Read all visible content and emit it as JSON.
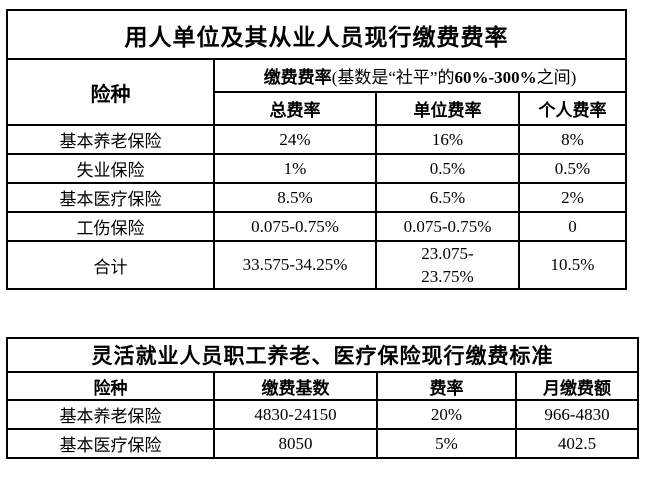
{
  "table1": {
    "title": "用人单位及其从业人员现行缴费费率",
    "insurance_type_header": "险种",
    "rate_header": {
      "bold_prefix": "缴费费率",
      "mid": "(基数是“社平”的",
      "bold_range": "60%-300%",
      "suffix": "之间)"
    },
    "sub_headers": {
      "total": "总费率",
      "employer": "单位费率",
      "personal": "个人费率"
    },
    "rows": [
      {
        "name": "基本养老保险",
        "total": "24%",
        "employer": "16%",
        "personal": "8%"
      },
      {
        "name": "失业保险",
        "total": "1%",
        "employer": "0.5%",
        "personal": "0.5%"
      },
      {
        "name": "基本医疗保险",
        "total": "8.5%",
        "employer": "6.5%",
        "personal": "2%"
      },
      {
        "name": "工伤保险",
        "total": "0.075-0.75%",
        "employer": "0.075-0.75%",
        "personal": "0"
      },
      {
        "name": "合计",
        "total": "33.575-34.25%",
        "employer": "23.075-23.75%",
        "personal": "10.5%"
      }
    ]
  },
  "table2": {
    "title": "灵活就业人员职工养老、医疗保险现行缴费标准",
    "headers": {
      "type": "险种",
      "base": "缴费基数",
      "rate": "费率",
      "monthly": "月缴费额"
    },
    "rows": [
      {
        "name": "基本养老保险",
        "base": "4830-24150",
        "rate": "20%",
        "monthly": "966-4830"
      },
      {
        "name": "基本医疗保险",
        "base": "8050",
        "rate": "5%",
        "monthly": "402.5"
      }
    ]
  }
}
